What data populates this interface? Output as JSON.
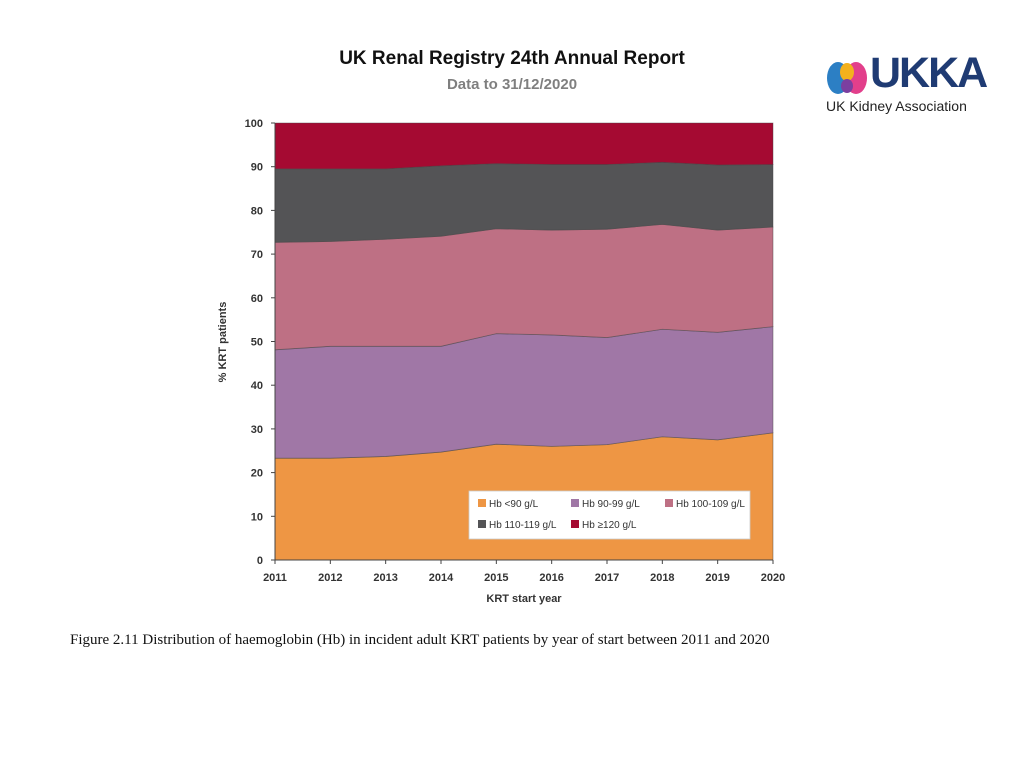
{
  "header": {
    "title": "UK Renal Registry 24th Annual Report",
    "subtitle": "Data to 31/12/2020"
  },
  "logo": {
    "brand": "UKKA",
    "tagline": "UK Kidney Association"
  },
  "caption": "Figure 2.11 Distribution of haemoglobin (Hb) in incident adult KRT patients by year of start between 2011 and 2020",
  "colors": {
    "hb_lt90": "#EE9644",
    "hb_90_99": "#A077A6",
    "hb_100_109": "#BE7084",
    "hb_110_119": "#545456",
    "hb_ge120": "#A50A32"
  },
  "chart_data": {
    "type": "area",
    "stacked": true,
    "title": "",
    "xlabel": "KRT start year",
    "ylabel": "% KRT patients",
    "x": [
      "2011",
      "2012",
      "2013",
      "2014",
      "2015",
      "2016",
      "2017",
      "2018",
      "2019",
      "2020"
    ],
    "ylim": [
      0,
      100
    ],
    "yticks": [
      0,
      10,
      20,
      30,
      40,
      50,
      60,
      70,
      80,
      90,
      100
    ],
    "legend_position": "bottom-right",
    "series": [
      {
        "name": "Hb <90 g/L",
        "color_key": "hb_lt90",
        "values": [
          23.3,
          23.3,
          23.7,
          24.7,
          26.5,
          26.0,
          26.4,
          28.2,
          27.5,
          29.1
        ]
      },
      {
        "name": "Hb 90-99 g/L",
        "color_key": "hb_90_99",
        "values": [
          24.8,
          25.6,
          25.2,
          24.2,
          25.3,
          25.5,
          24.5,
          24.6,
          24.6,
          24.3
        ]
      },
      {
        "name": "Hb 100-109 g/L",
        "color_key": "hb_100_109",
        "values": [
          24.6,
          24.0,
          24.5,
          25.2,
          24.0,
          24.0,
          24.8,
          24.0,
          23.4,
          22.8
        ]
      },
      {
        "name": "Hb 110-119 g/L",
        "color_key": "hb_110_119",
        "values": [
          16.8,
          16.6,
          16.1,
          16.1,
          14.9,
          15.0,
          14.8,
          14.2,
          14.9,
          14.3
        ]
      },
      {
        "name": "Hb ≥120 g/L",
        "color_key": "hb_ge120",
        "values": [
          10.5,
          10.5,
          10.5,
          9.8,
          9.3,
          9.5,
          9.5,
          9.0,
          9.6,
          9.5
        ]
      }
    ]
  }
}
